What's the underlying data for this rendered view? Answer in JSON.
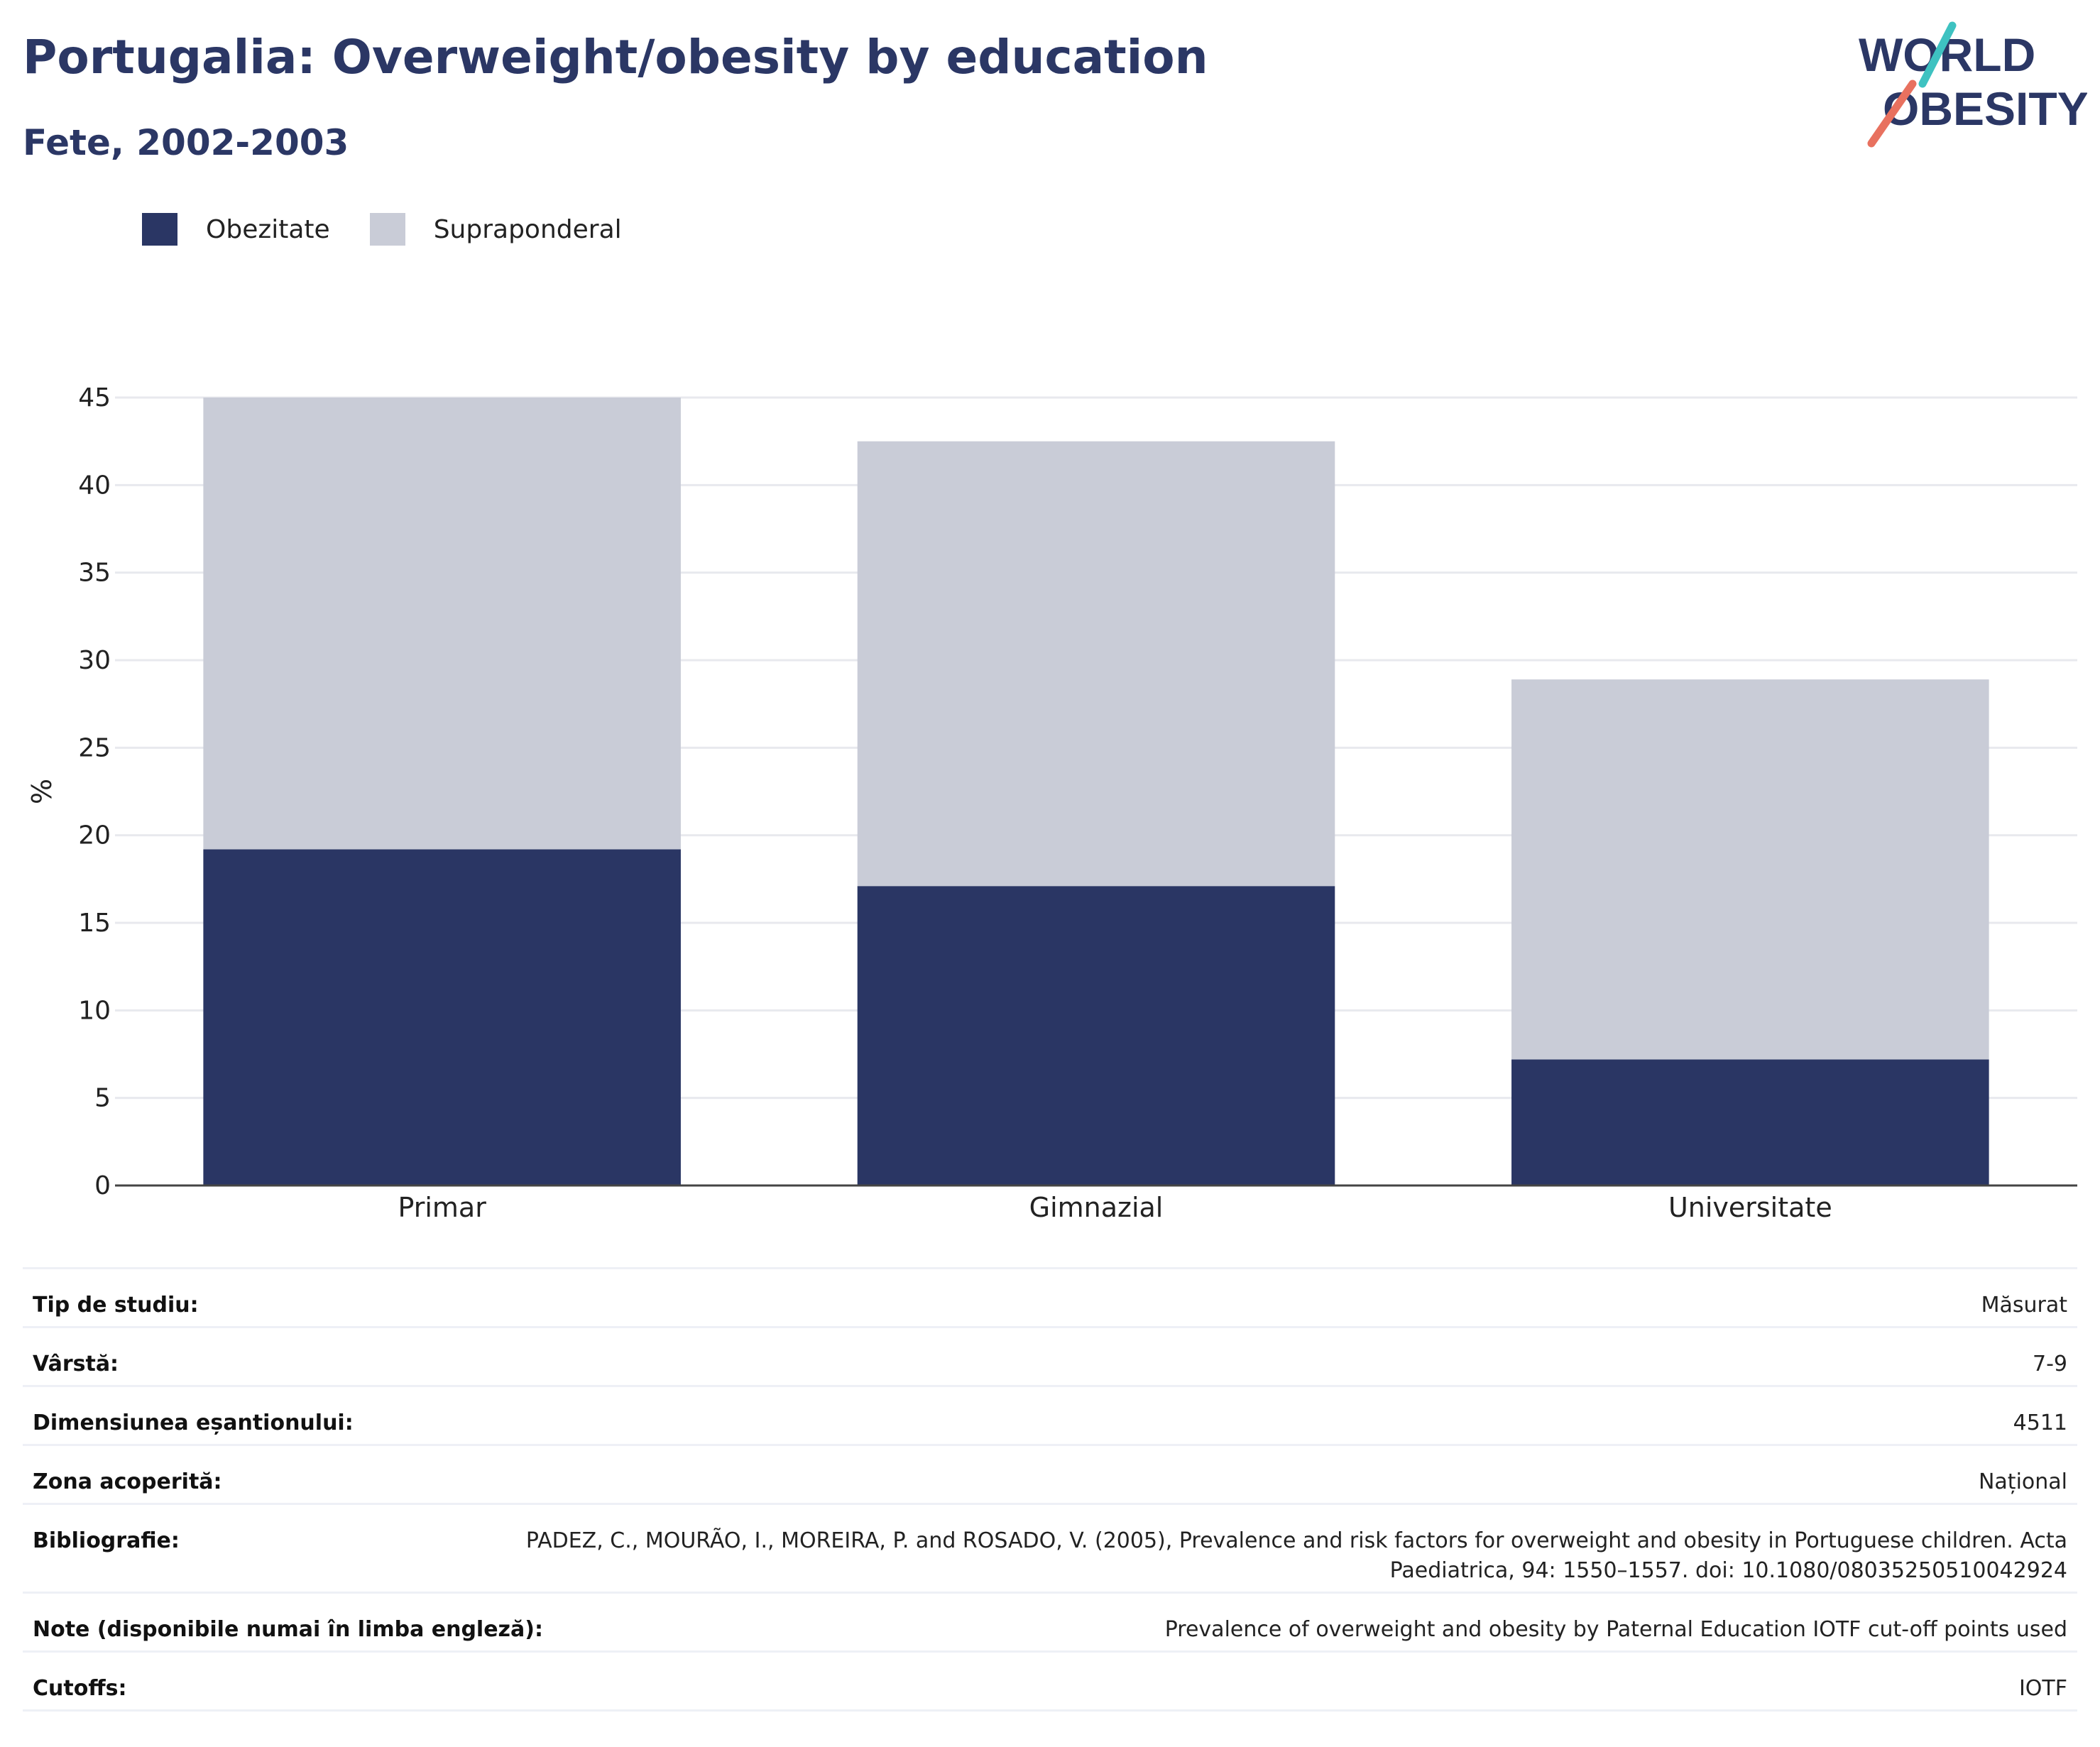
{
  "header": {
    "title": "Portugalia: Overweight/obesity by education",
    "subtitle": "Fete, 2002-2003",
    "logo_line1": "WORLD",
    "logo_line2": "OBESITY"
  },
  "colors": {
    "obesity": "#2a3664",
    "overweight": "#c9ccd7",
    "title": "#2b3765",
    "logo_teal": "#3ec2c1",
    "logo_coral": "#e8715f"
  },
  "legend": [
    {
      "label": "Obezitate",
      "color": "#2a3664"
    },
    {
      "label": "Supraponderal",
      "color": "#c9ccd7"
    }
  ],
  "chart_data": {
    "type": "bar",
    "stacked": true,
    "categories": [
      "Primar",
      "Gimnazial",
      "Universitate"
    ],
    "series": [
      {
        "name": "Obezitate",
        "values": [
          19.2,
          17.1,
          7.2
        ]
      },
      {
        "name": "Supraponderal",
        "values": [
          25.8,
          25.4,
          21.7
        ]
      }
    ],
    "ylabel": "%",
    "xlabel": "",
    "ylim": [
      0,
      45
    ],
    "yticks": [
      0,
      5,
      10,
      15,
      20,
      25,
      30,
      35,
      40,
      45
    ],
    "grid": true,
    "legend_position": "top-left"
  },
  "info_rows": [
    {
      "key": "Tip de studiu:",
      "value": "Măsurat"
    },
    {
      "key": "Vârstă:",
      "value": "7-9"
    },
    {
      "key": "Dimensiunea eșantionului:",
      "value": "4511"
    },
    {
      "key": "Zona acoperită:",
      "value": "Național"
    },
    {
      "key": "Bibliografie:",
      "value": "PADEZ, C., MOURÃO, I., MOREIRA, P. and ROSADO, V. (2005), Prevalence and risk factors for overweight and obesity in Portuguese children. Acta Paediatrica, 94: 1550–1557. doi: 10.1080/08035250510042924"
    },
    {
      "key": "Note (disponibile numai în limba engleză):",
      "value": "Prevalence of overweight and obesity by Paternal Education IOTF cut-off points used"
    },
    {
      "key": "Cutoffs:",
      "value": "IOTF"
    }
  ]
}
